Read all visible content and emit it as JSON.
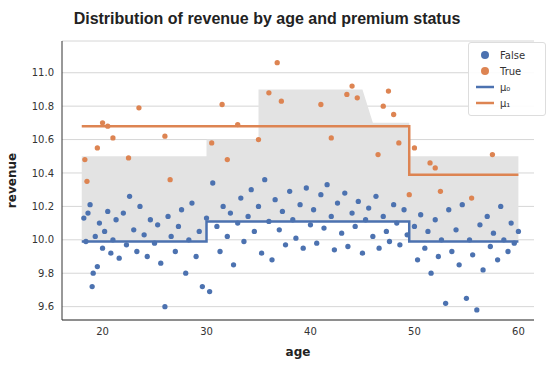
{
  "chart_data": {
    "type": "scatter",
    "title": "Distribution of revenue by age and premium status",
    "x_label": "age",
    "y_label": "revenue",
    "xlim": [
      16.1,
      61.5
    ],
    "xticks": [
      20,
      30,
      40,
      50,
      60
    ],
    "ylim": [
      9.52,
      11.19
    ],
    "yticks": [
      9.6,
      9.8,
      {
        "value": 10,
        "label": "10.0"
      },
      10.2,
      10.4,
      10.6,
      10.8,
      {
        "value": 11,
        "label": "11.0"
      }
    ],
    "grid": "y",
    "legend": "upper right",
    "band": {
      "color": "#e3e3e3",
      "x": [
        18,
        30,
        30,
        35,
        35,
        45,
        46,
        49.5,
        49.5,
        60
      ],
      "lower": [
        9.99,
        9.99,
        10.11,
        10.11,
        10.11,
        10.11,
        10.11,
        10.11,
        9.99,
        9.99
      ],
      "upper": [
        10.5,
        10.5,
        10.6,
        10.6,
        10.9,
        10.9,
        10.7,
        10.7,
        10.5,
        10.5
      ]
    },
    "series": [
      {
        "name": "False",
        "type": "scatter",
        "marker": "o",
        "color": "#4c72b0",
        "x": [
          18.2,
          18.4,
          18.6,
          18.8,
          19.0,
          19.1,
          19.3,
          19.5,
          19.7,
          20.0,
          20.2,
          20.5,
          20.8,
          21.0,
          21.3,
          21.6,
          22.0,
          22.3,
          22.6,
          23.0,
          23.3,
          23.6,
          24.0,
          24.3,
          24.6,
          25.0,
          25.3,
          25.6,
          26.0,
          26.3,
          26.6,
          27.0,
          27.3,
          27.6,
          28.0,
          28.3,
          28.6,
          29.0,
          29.3,
          29.6,
          30.0,
          30.3,
          30.6,
          31.0,
          31.3,
          31.6,
          32.0,
          32.3,
          32.6,
          33.0,
          33.3,
          33.6,
          34.0,
          34.3,
          34.6,
          35.0,
          35.3,
          35.6,
          36.0,
          36.3,
          36.6,
          37.0,
          37.3,
          37.6,
          38.0,
          38.3,
          38.6,
          39.0,
          39.3,
          39.6,
          40.0,
          40.3,
          40.6,
          41.0,
          41.3,
          41.6,
          42.0,
          42.3,
          42.6,
          43.0,
          43.3,
          43.6,
          44.0,
          44.3,
          44.6,
          45.0,
          45.3,
          45.6,
          46.0,
          46.3,
          46.6,
          47.0,
          47.3,
          47.6,
          48.0,
          48.3,
          48.6,
          49.0,
          49.3,
          50.0,
          50.3,
          50.6,
          51.0,
          51.3,
          51.6,
          52.0,
          52.3,
          52.6,
          53.0,
          53.3,
          53.6,
          54.0,
          54.3,
          54.6,
          55.0,
          55.3,
          55.6,
          56.0,
          56.3,
          56.6,
          57.0,
          57.3,
          57.6,
          58.0,
          58.3,
          58.6,
          59.0,
          59.3,
          59.6,
          60.0
        ],
        "values": [
          10.13,
          9.99,
          10.16,
          10.21,
          9.72,
          9.8,
          10.02,
          9.84,
          10.1,
          9.95,
          10.05,
          10.17,
          9.92,
          10.0,
          10.12,
          9.89,
          10.16,
          9.97,
          10.26,
          10.06,
          9.93,
          10.2,
          10.03,
          9.9,
          10.12,
          9.98,
          10.09,
          9.86,
          9.6,
          10.14,
          10.02,
          9.93,
          10.08,
          10.18,
          9.8,
          10.0,
          10.22,
          9.9,
          10.05,
          9.72,
          10.13,
          9.69,
          10.34,
          10.08,
          9.93,
          10.2,
          10.02,
          10.16,
          9.85,
          10.1,
          10.25,
          9.99,
          10.14,
          10.3,
          10.05,
          10.2,
          9.92,
          10.36,
          10.11,
          9.88,
          10.24,
          10.06,
          10.17,
          9.97,
          10.29,
          10.12,
          10.01,
          10.21,
          9.95,
          10.31,
          10.09,
          10.18,
          9.98,
          10.27,
          10.07,
          10.33,
          10.14,
          9.94,
          10.22,
          10.04,
          10.28,
          9.96,
          10.16,
          10.08,
          10.23,
          9.92,
          10.12,
          10.19,
          10.02,
          10.26,
          9.95,
          10.14,
          10.05,
          9.99,
          10.21,
          10.1,
          9.97,
          10.18,
          10.03,
          10.08,
          9.88,
          10.15,
          9.95,
          10.05,
          9.8,
          10.12,
          9.9,
          10.0,
          9.62,
          10.18,
          9.93,
          10.06,
          9.85,
          10.21,
          9.65,
          10.0,
          9.91,
          9.58,
          10.09,
          9.82,
          10.14,
          9.96,
          10.04,
          9.88,
          10.2,
          10.0,
          9.93,
          10.1,
          9.98,
          10.05
        ]
      },
      {
        "name": "True",
        "type": "scatter",
        "marker": "o",
        "color": "#dd8452",
        "x": [
          18.3,
          18.5,
          19.5,
          20.0,
          20.5,
          21.0,
          22.5,
          23.5,
          26.0,
          26.5,
          30.5,
          31.5,
          32.0,
          33.0,
          35.0,
          36.0,
          36.8,
          37.2,
          41.0,
          42.0,
          43.5,
          44.0,
          44.5,
          46.5,
          47.0,
          47.5,
          48.0,
          48.5,
          49.5,
          50.0,
          51.5,
          52.0,
          52.5,
          55.5,
          57.5
        ],
        "values": [
          10.48,
          10.35,
          10.55,
          10.7,
          10.68,
          10.61,
          10.49,
          10.79,
          10.62,
          10.36,
          10.58,
          10.81,
          10.48,
          10.69,
          10.6,
          10.88,
          11.06,
          10.83,
          10.81,
          10.61,
          10.87,
          10.92,
          10.85,
          10.51,
          10.8,
          10.89,
          10.75,
          10.58,
          10.27,
          10.55,
          10.46,
          10.43,
          10.29,
          10.25,
          10.51
        ]
      },
      {
        "name": "μ₀",
        "type": "line",
        "line_style": "step",
        "color": "#4c72b0",
        "x": [
          18,
          30,
          49.5,
          60
        ],
        "values": [
          9.99,
          10.11,
          9.99,
          9.99
        ]
      },
      {
        "name": "μ₁",
        "type": "line",
        "line_style": "step",
        "color": "#dd8452",
        "x": [
          18,
          49.5,
          60
        ],
        "values": [
          10.68,
          10.39,
          10.39
        ]
      }
    ]
  }
}
